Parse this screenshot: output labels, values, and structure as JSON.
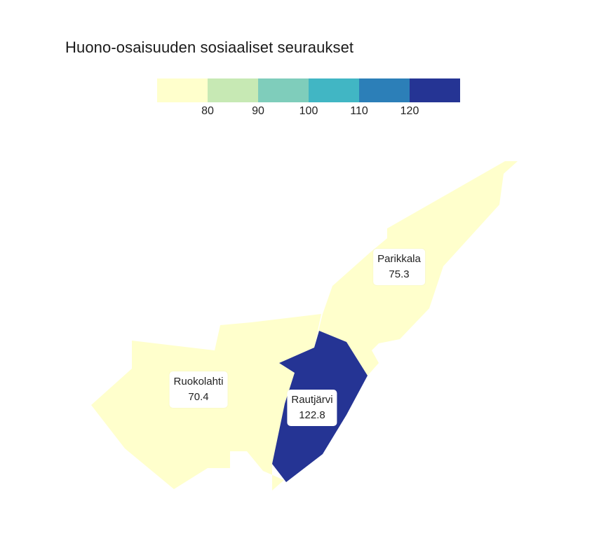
{
  "title": "Huono-osaisuuden sosiaaliset seuraukset",
  "legend": {
    "breaks": [
      "80",
      "90",
      "100",
      "110",
      "120"
    ],
    "colors": [
      "#ffffcc",
      "#c7e9b4",
      "#7fcdbb",
      "#41b6c4",
      "#2c7fb8",
      "#253494"
    ]
  },
  "regions": [
    {
      "name": "Parikkala",
      "value": "75.3",
      "color": "#ffffcc"
    },
    {
      "name": "Ruokolahti",
      "value": "70.4",
      "color": "#ffffcc"
    },
    {
      "name": "Rautjärvi",
      "value": "122.8",
      "color": "#253494"
    }
  ]
}
